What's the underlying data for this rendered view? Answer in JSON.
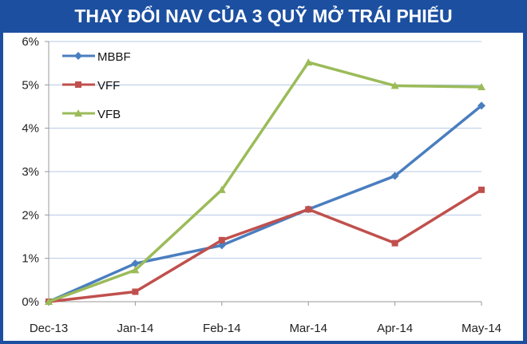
{
  "title": "THAY ĐỔI NAV CỦA 3 QUỸ MỞ TRÁI PHIẾU",
  "colors": {
    "background": "#1c4fa0",
    "plot_bg": "#ffffff",
    "grid": "#b6c8e6",
    "axis": "#999999",
    "MBBF": "#4a7ebf",
    "VFF": "#c0504d",
    "VFB": "#9bbb59"
  },
  "chart_data": {
    "type": "line",
    "title": "THAY ĐỔI NAV CỦA 3 QUỸ MỞ TRÁI PHIẾU",
    "xlabel": "",
    "ylabel": "",
    "categories": [
      "Dec-13",
      "Jan-14",
      "Feb-14",
      "Mar-14",
      "Apr-14",
      "May-14"
    ],
    "series": [
      {
        "name": "MBBF",
        "marker": "diamond",
        "values": [
          0.0,
          0.88,
          1.3,
          2.13,
          2.9,
          4.52
        ]
      },
      {
        "name": "VFF",
        "marker": "square",
        "values": [
          0.0,
          0.23,
          1.42,
          2.13,
          1.35,
          2.58
        ]
      },
      {
        "name": "VFB",
        "marker": "triangle",
        "values": [
          0.0,
          0.73,
          2.58,
          5.52,
          4.98,
          4.95
        ]
      }
    ],
    "ylim": [
      0,
      6
    ],
    "yticks": [
      "0%",
      "1%",
      "2%",
      "3%",
      "4%",
      "5%",
      "6%"
    ],
    "grid": true,
    "legend_position": "top-left inside"
  }
}
